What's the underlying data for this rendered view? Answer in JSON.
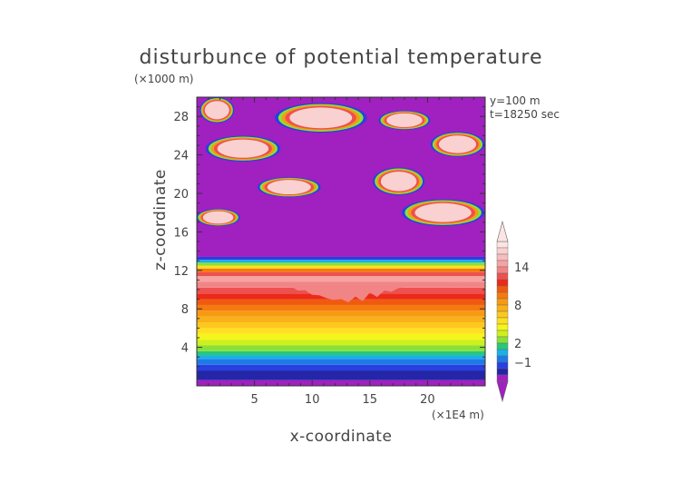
{
  "chart_data": {
    "type": "heatmap",
    "title": "disturbunce of potential temperature",
    "xlabel": "x-coordinate",
    "ylabel": "z-coordinate",
    "x_scale_label": "(×1E4 m)",
    "y_scale_label": "(×1000 m)",
    "annotations": [
      "y=100 m",
      "t=18250 sec"
    ],
    "xlim": [
      0,
      25
    ],
    "ylim": [
      0,
      30
    ],
    "x_ticks": [
      5,
      10,
      15,
      20
    ],
    "y_ticks": [
      4,
      8,
      12,
      16,
      20,
      24,
      28
    ],
    "colorbar": {
      "labels": [
        {
          "value": 14,
          "text": "14"
        },
        {
          "value": 8,
          "text": "8"
        },
        {
          "value": 2,
          "text": "2"
        },
        {
          "value": -1,
          "text": "−1"
        }
      ],
      "levels": [
        {
          "min": 17,
          "max": 18,
          "color": "#fbe4e4"
        },
        {
          "min": 16,
          "max": 17,
          "color": "#f9d1d1"
        },
        {
          "min": 15,
          "max": 16,
          "color": "#f7bcbc"
        },
        {
          "min": 14,
          "max": 15,
          "color": "#f5a3a3"
        },
        {
          "min": 13,
          "max": 14,
          "color": "#f18585"
        },
        {
          "min": 12,
          "max": 13,
          "color": "#ed5050"
        },
        {
          "min": 11,
          "max": 12,
          "color": "#ec2a1a"
        },
        {
          "min": 10,
          "max": 11,
          "color": "#f05a10"
        },
        {
          "min": 9,
          "max": 10,
          "color": "#f47a10"
        },
        {
          "min": 8,
          "max": 9,
          "color": "#f79a12"
        },
        {
          "min": 7,
          "max": 8,
          "color": "#fab018"
        },
        {
          "min": 6,
          "max": 7,
          "color": "#fcc820"
        },
        {
          "min": 5,
          "max": 6,
          "color": "#ffe020"
        },
        {
          "min": 4,
          "max": 5,
          "color": "#f5f51a"
        },
        {
          "min": 3,
          "max": 4,
          "color": "#cdf01e"
        },
        {
          "min": 2,
          "max": 3,
          "color": "#8ae03a"
        },
        {
          "min": 1,
          "max": 2,
          "color": "#28c878"
        },
        {
          "min": 0,
          "max": 1,
          "color": "#19b0e8"
        },
        {
          "min": -1,
          "max": 0,
          "color": "#1f7ae8"
        },
        {
          "min": -2,
          "max": -1,
          "color": "#2840e0"
        },
        {
          "min": -3,
          "max": -2,
          "color": "#2426a8"
        },
        {
          "min": -4,
          "max": -3,
          "color": "#a020c0"
        }
      ]
    },
    "field_bands": [
      {
        "zmin": 0,
        "zmax": 0.6,
        "value": -3.5
      },
      {
        "zmin": 0.6,
        "zmax": 1.6,
        "value": -2.5
      },
      {
        "zmin": 1.6,
        "zmax": 2.2,
        "value": -1.5
      },
      {
        "zmin": 2.2,
        "zmax": 2.8,
        "value": -0.5
      },
      {
        "zmin": 2.8,
        "zmax": 3.2,
        "value": 0.5
      },
      {
        "zmin": 3.2,
        "zmax": 3.6,
        "value": 1.5
      },
      {
        "zmin": 3.6,
        "zmax": 4.2,
        "value": 2.5
      },
      {
        "zmin": 4.2,
        "zmax": 4.8,
        "value": 3.5
      },
      {
        "zmin": 4.8,
        "zmax": 5.4,
        "value": 4.5
      },
      {
        "zmin": 5.4,
        "zmax": 6.0,
        "value": 5.5
      },
      {
        "zmin": 6.0,
        "zmax": 6.6,
        "value": 6.5
      },
      {
        "zmin": 6.6,
        "zmax": 7.2,
        "value": 7.5
      },
      {
        "zmin": 7.2,
        "zmax": 7.8,
        "value": 8.5
      },
      {
        "zmin": 7.8,
        "zmax": 8.4,
        "value": 9.5
      },
      {
        "zmin": 8.4,
        "zmax": 9.0,
        "value": 10.5
      },
      {
        "zmin": 9.0,
        "zmax": 9.6,
        "value": 11.5
      },
      {
        "zmin": 9.6,
        "zmax": 10.2,
        "value": 12.5
      },
      {
        "zmin": 10.2,
        "zmax": 10.8,
        "value": 13.5
      },
      {
        "zmin": 10.8,
        "zmax": 11.4,
        "value": 14.5
      },
      {
        "zmin": 11.4,
        "zmax": 11.8,
        "value": 12.5
      },
      {
        "zmin": 11.8,
        "zmax": 12.2,
        "value": 9.5
      },
      {
        "zmin": 12.2,
        "zmax": 12.5,
        "value": 5.5
      },
      {
        "zmin": 12.5,
        "zmax": 12.8,
        "value": 2.5
      },
      {
        "zmin": 12.8,
        "zmax": 13.1,
        "value": 0.5
      },
      {
        "zmin": 13.1,
        "zmax": 13.4,
        "value": -1.5
      },
      {
        "zmin": 13.4,
        "zmax": 30,
        "value": -3.5
      }
    ],
    "upper_layers": [
      {
        "xmin": 0.2,
        "xmax": 3.5,
        "zmin": 16.8,
        "zmax": 18.2,
        "value": 16.5
      },
      {
        "xmin": 5.5,
        "xmax": 10.5,
        "zmin": 19.8,
        "zmax": 21.5,
        "value": 16.5
      },
      {
        "xmin": 15.5,
        "xmax": 19.5,
        "zmin": 20.0,
        "zmax": 22.5,
        "value": 16.5
      },
      {
        "xmin": 18.0,
        "xmax": 24.7,
        "zmin": 16.8,
        "zmax": 19.2,
        "value": 16.5
      },
      {
        "xmin": 1.0,
        "xmax": 7.0,
        "zmin": 23.5,
        "zmax": 25.8,
        "value": 16.5
      },
      {
        "xmin": 7.0,
        "xmax": 14.5,
        "zmin": 26.5,
        "zmax": 29.2,
        "value": 16.5
      },
      {
        "xmin": 16.0,
        "xmax": 20.0,
        "zmin": 26.8,
        "zmax": 28.4,
        "value": 16.5
      },
      {
        "xmin": 20.5,
        "xmax": 24.7,
        "zmin": 24.0,
        "zmax": 26.2,
        "value": 16.5
      },
      {
        "xmin": 0.5,
        "xmax": 3.0,
        "zmin": 27.5,
        "zmax": 29.8,
        "value": 16.5
      }
    ]
  }
}
